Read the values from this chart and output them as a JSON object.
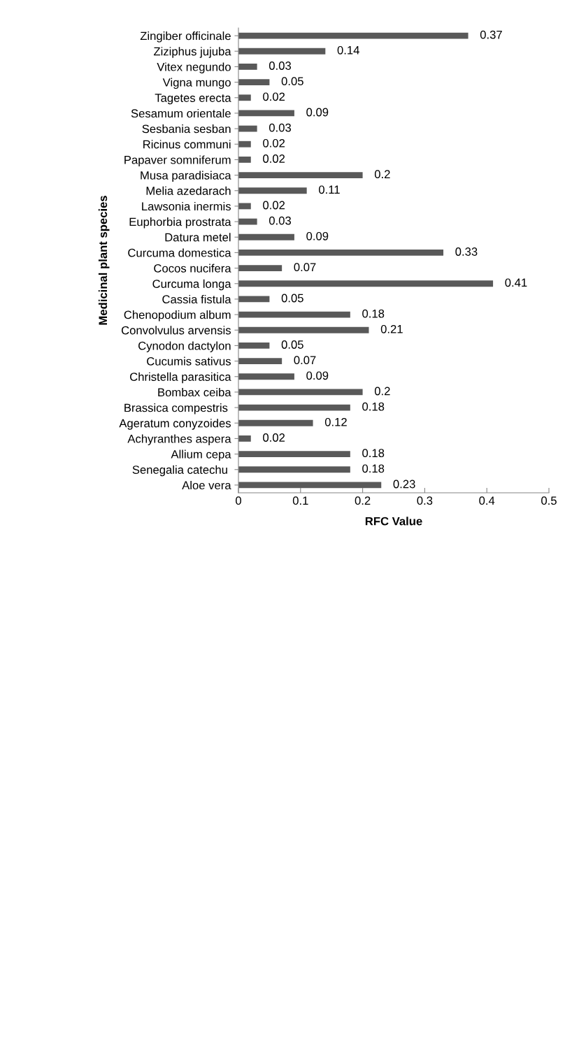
{
  "chart_data": {
    "type": "bar",
    "orientation": "horizontal",
    "xlabel": "RFC Value",
    "ylabel": "Medicinal plant species",
    "categories": [
      "Zingiber officinale",
      "Ziziphus jujuba",
      "Vitex negundo",
      "Vigna mungo",
      "Tagetes erecta",
      "Sesamum orientale",
      "Sesbania sesban",
      "Ricinus communi",
      "Papaver somniferum",
      "Musa paradisiaca",
      "Melia azedarach",
      "Lawsonia inermis",
      "Euphorbia prostrata",
      "Datura metel",
      "Curcuma domestica",
      "Cocos nucifera",
      "Curcuma longa",
      "Cassia fistula",
      "Chenopodium album",
      "Convolvulus arvensis",
      "Cynodon dactylon",
      "Cucumis sativus",
      "Christella parasitica",
      "Bombax ceiba",
      "Brassica compestris ",
      "Ageratum conyzoides",
      "Achyranthes aspera",
      "Allium cepa",
      "Senegalia catechu ",
      "Aloe vera"
    ],
    "values": [
      0.37,
      0.14,
      0.03,
      0.05,
      0.02,
      0.09,
      0.03,
      0.02,
      0.02,
      0.2,
      0.11,
      0.02,
      0.03,
      0.09,
      0.33,
      0.07,
      0.41,
      0.05,
      0.18,
      0.21,
      0.05,
      0.07,
      0.09,
      0.2,
      0.18,
      0.12,
      0.02,
      0.18,
      0.18,
      0.23
    ],
    "color": "#595959",
    "data_labels": true,
    "xlim": [
      0,
      0.5
    ],
    "xticks": [
      0,
      0.1,
      0.2,
      0.3,
      0.4,
      0.5
    ],
    "grid": false,
    "legend": false
  }
}
